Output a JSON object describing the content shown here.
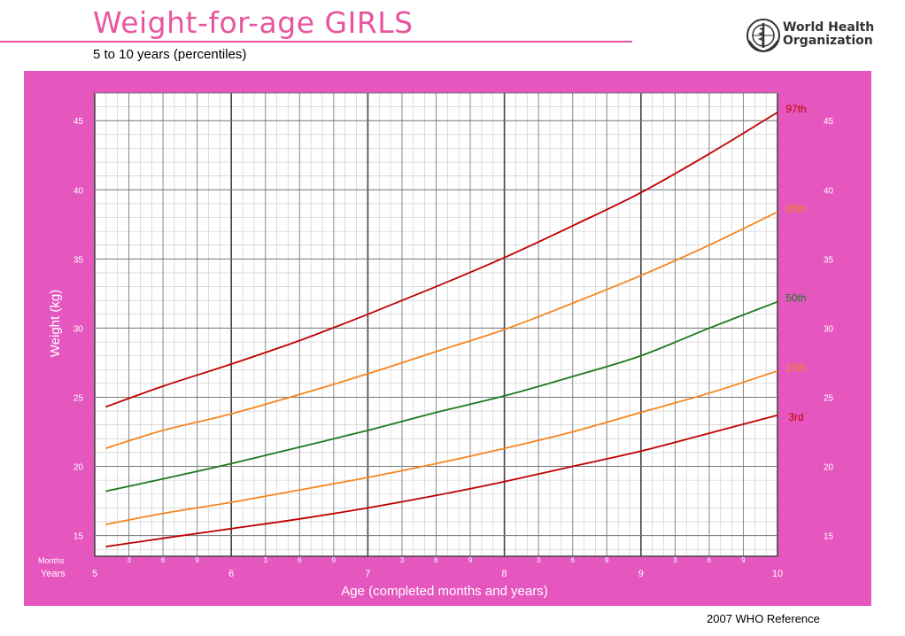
{
  "header": {
    "title": "Weight-for-age  GIRLS",
    "subtitle": "5 to 10 years (percentiles)",
    "org_line1": "World Health",
    "org_line2": "Organization"
  },
  "footer": {
    "reference": "2007 WHO Reference"
  },
  "colors": {
    "pink": "#e556bf",
    "red": "#c00000",
    "orange": "#f5861f",
    "green": "#1e7a1e"
  },
  "chart_data": {
    "type": "line",
    "title": "Weight-for-age  GIRLS",
    "subtitle": "5 to 10 years (percentiles)",
    "xlabel": "Age (completed months and years)",
    "ylabel": "Weight (kg)",
    "xlim": [
      5,
      10
    ],
    "ylim": [
      13.5,
      47
    ],
    "grid": true,
    "y_ticks": [
      15,
      20,
      25,
      30,
      35,
      40,
      45
    ],
    "x_year_ticks": [
      "5",
      "6",
      "7",
      "8",
      "9",
      "10"
    ],
    "x_month_ticks": [
      "3",
      "6",
      "9"
    ],
    "x_axis_row_labels": {
      "months": "Months",
      "years": "Years"
    },
    "x": [
      5.08,
      5.5,
      6,
      6.5,
      7,
      7.5,
      8,
      8.5,
      9,
      9.5,
      10
    ],
    "series": [
      {
        "name": "97th",
        "color": "#c00000",
        "values": [
          24.3,
          25.8,
          27.4,
          29.1,
          31.0,
          33.0,
          35.1,
          37.4,
          39.8,
          42.6,
          45.6
        ]
      },
      {
        "name": "85th",
        "color": "#f5861f",
        "values": [
          21.3,
          22.6,
          23.8,
          25.2,
          26.7,
          28.3,
          29.9,
          31.8,
          33.8,
          36.0,
          38.4
        ]
      },
      {
        "name": "50th",
        "color": "#1e7a1e",
        "values": [
          18.2,
          19.1,
          20.2,
          21.4,
          22.6,
          23.9,
          25.1,
          26.5,
          28.0,
          30.0,
          31.9
        ]
      },
      {
        "name": "15th",
        "color": "#f5861f",
        "values": [
          15.8,
          16.6,
          17.4,
          18.3,
          19.2,
          20.2,
          21.3,
          22.5,
          23.9,
          25.3,
          26.9
        ]
      },
      {
        "name": "3rd",
        "color": "#c00000",
        "values": [
          14.2,
          14.8,
          15.5,
          16.2,
          17.0,
          17.9,
          18.9,
          20.0,
          21.1,
          22.4,
          23.7
        ]
      }
    ]
  }
}
